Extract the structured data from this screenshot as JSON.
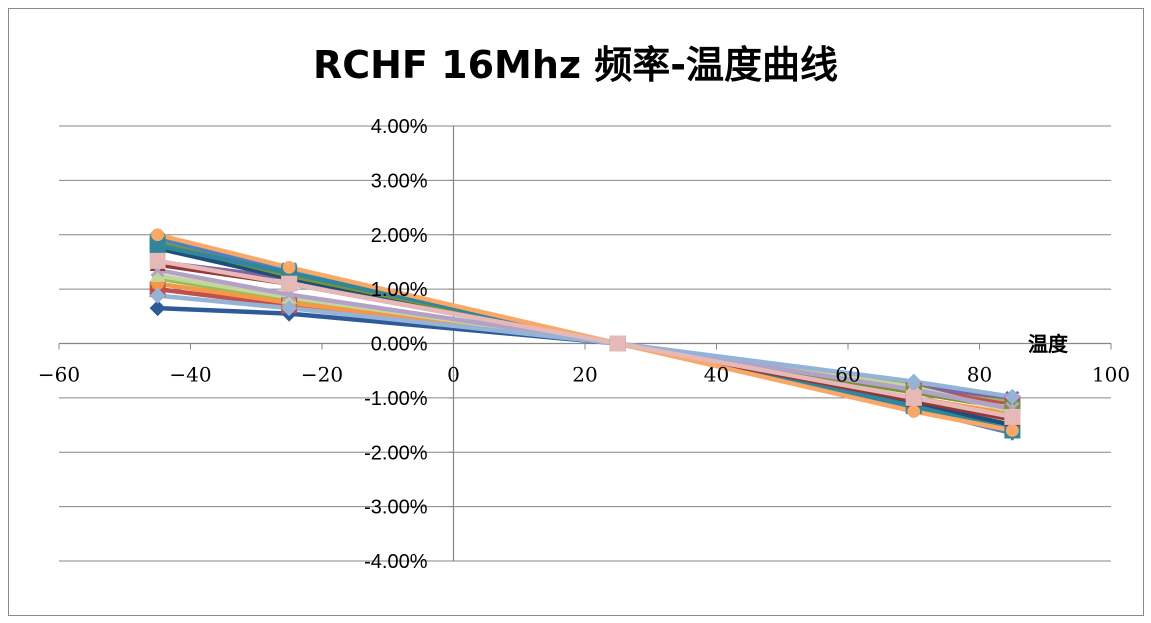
{
  "chart_data": {
    "type": "line",
    "title": "RCHF 16Mhz 频率-温度曲线",
    "xlabel": "温度",
    "ylabel": "",
    "xlim": [
      -60,
      100
    ],
    "ylim": [
      -0.04,
      0.04
    ],
    "x_ticks": [
      -60,
      -40,
      -20,
      0,
      20,
      40,
      60,
      80,
      100
    ],
    "y_ticks": [
      0.04,
      0.03,
      0.02,
      0.01,
      0.0,
      -0.01,
      -0.02,
      -0.03,
      -0.04
    ],
    "y_tick_labels": [
      "4.00%",
      "3.00%",
      "2.00%",
      "1.00%",
      "0.00%",
      "-1.00%",
      "-2.00%",
      "-3.00%",
      "-4.00%"
    ],
    "x": [
      -45,
      -25,
      25,
      70,
      85
    ],
    "grid": true,
    "legend": "none",
    "series": [
      {
        "color": "#2e5a9a",
        "marker": "diamond",
        "values": [
          0.0065,
          0.0055,
          0.0,
          -0.0115,
          -0.0155
        ]
      },
      {
        "color": "#c0504d",
        "marker": "square",
        "values": [
          0.01,
          0.007,
          0.0,
          -0.0085,
          -0.011
        ]
      },
      {
        "color": "#9bbb59",
        "marker": "triangle",
        "values": [
          0.012,
          0.008,
          0.0,
          -0.0075,
          -0.0105
        ]
      },
      {
        "color": "#8064a2",
        "marker": "x",
        "values": [
          0.015,
          0.012,
          0.0,
          -0.008,
          -0.01
        ]
      },
      {
        "color": "#4bacc6",
        "marker": "star",
        "values": [
          0.019,
          0.0135,
          0.0,
          -0.011,
          -0.0155
        ]
      },
      {
        "color": "#f79646",
        "marker": "circle",
        "values": [
          0.011,
          0.0075,
          0.0,
          -0.01,
          -0.013
        ]
      },
      {
        "color": "#4f81bd",
        "marker": "plus",
        "values": [
          0.0195,
          0.013,
          0.0,
          -0.012,
          -0.0165
        ]
      },
      {
        "color": "#1f4e79",
        "marker": "diamond",
        "values": [
          0.0175,
          0.012,
          0.0,
          -0.011,
          -0.015
        ]
      },
      {
        "color": "#76923c",
        "marker": "square",
        "values": [
          0.0185,
          0.0125,
          0.0,
          -0.009,
          -0.012
        ]
      },
      {
        "color": "#31859c",
        "marker": "square",
        "values": [
          0.018,
          0.013,
          0.0,
          -0.0115,
          -0.016
        ]
      },
      {
        "color": "#953735",
        "marker": "triangle",
        "values": [
          0.0145,
          0.011,
          0.0,
          -0.0105,
          -0.014
        ]
      },
      {
        "color": "#c3d69b",
        "marker": "triangle",
        "values": [
          0.0125,
          0.0085,
          0.0,
          -0.008,
          -0.0125
        ]
      },
      {
        "color": "#b3a2c7",
        "marker": "x",
        "values": [
          0.0135,
          0.009,
          0.0,
          -0.0085,
          -0.012
        ]
      },
      {
        "color": "#f9a868",
        "marker": "circle",
        "values": [
          0.02,
          0.014,
          0.0,
          -0.0125,
          -0.016
        ]
      },
      {
        "color": "#95b3d7",
        "marker": "diamond",
        "values": [
          0.0088,
          0.0065,
          0.0,
          -0.007,
          -0.0098
        ]
      },
      {
        "color": "#e6b9b8",
        "marker": "square",
        "values": [
          0.0152,
          0.011,
          0.0,
          -0.01,
          -0.0135
        ]
      }
    ]
  }
}
